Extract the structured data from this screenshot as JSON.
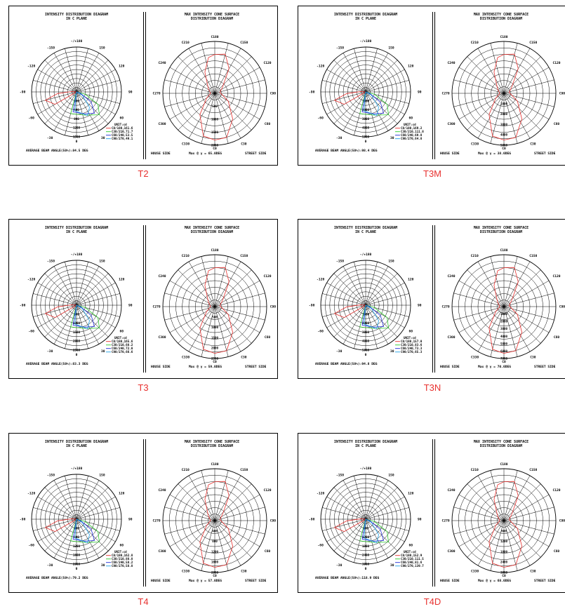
{
  "colors": {
    "red": "#e8312f",
    "green": "#2ecc2e",
    "blue": "#1f2ad6",
    "cyan": "#1fa0e6",
    "black": "#000000"
  },
  "panels": [
    {
      "caption": "T2",
      "left": {
        "title": "INTENSITY DISTRIBUTION DIAGRAM\nIN C PLANE",
        "angles": [
          "-/+180",
          "-150",
          "150",
          "-120",
          "120",
          "-90",
          "90",
          "-60",
          "60",
          "-30",
          "30",
          "0"
        ],
        "rings": [
          "300",
          "600",
          "900",
          "1200",
          "1500"
        ],
        "legend_title": "UNIT:cd",
        "legend": [
          "C0/180,161.6",
          "C30/210,71.7",
          "C60/240,53.5",
          "C90/270,49.1"
        ],
        "footer": "AVERAGE BEAM ANGLE(50%):84.5 DEG"
      },
      "right": {
        "title": "MAX INTENSITY CONE SURFACE\nDISTRIBUTION DIAGRAM",
        "angles": [
          "C180",
          "C210",
          "C150",
          "C240",
          "C120",
          "C270",
          "C90",
          "C300",
          "C60",
          "C330",
          "C30",
          "C0"
        ],
        "rings": [
          "500",
          "1000",
          "1500",
          "2000"
        ],
        "footer_left": "HOUSE SIDE",
        "footer_mid": "Max @ γ = 65.0DEG",
        "footer_right": "STREET SIDE"
      }
    },
    {
      "caption": "T3M",
      "left": {
        "title": "INTENSITY DISTRIBUTION DIAGRAM\nIN C PLANE",
        "angles": [
          "-/+180",
          "-150",
          "150",
          "-120",
          "120",
          "-90",
          "90",
          "-60",
          "60",
          "-30",
          "30",
          "0"
        ],
        "rings": [
          "1000",
          "2000",
          "3000",
          "4000",
          "5000"
        ],
        "legend_title": "UNIT:cd",
        "legend": [
          "C0/180,169.2",
          "C30/210,111.8",
          "C60/240,69.8",
          "C90/270,64.8"
        ],
        "footer": "AVERAGE BEAM ANGLE(50%):98.4 DEG"
      },
      "right": {
        "title": "MAX INTENSITY CONE SURFACE\nDISTRIBUTION DIAGRAM",
        "angles": [
          "C180",
          "C210",
          "C150",
          "C240",
          "C120",
          "C270",
          "C90",
          "C300",
          "C60",
          "C330",
          "C30",
          "C0"
        ],
        "rings": [
          "1000",
          "2000",
          "3000",
          "4000",
          "5000"
        ],
        "footer_left": "HOUSE SIDE",
        "footer_mid": "Max @ γ = 38.0DEG",
        "footer_right": "STREET SIDE"
      }
    },
    {
      "caption": "T3",
      "left": {
        "title": "INTENSITY DISTRIBUTION DIAGRAM\nIN C PLANE",
        "angles": [
          "-/+180",
          "-150",
          "150",
          "-120",
          "120",
          "-90",
          "90",
          "-60",
          "60",
          "-30",
          "30",
          "0"
        ],
        "rings": [
          "500",
          "1000",
          "1500",
          "2000",
          "2500"
        ],
        "legend_title": "UNIT:cd",
        "legend": [
          "C0/180,165.6",
          "C30/210,68.2",
          "C60/240,72.0",
          "C90/270,66.6"
        ],
        "footer": "AVERAGE BEAM ANGLE(50%):83.3 DEG"
      },
      "right": {
        "title": "MAX INTENSITY CONE SURFACE\nDISTRIBUTION DIAGRAM",
        "angles": [
          "C180",
          "C210",
          "C150",
          "C240",
          "C120",
          "C270",
          "C90",
          "C300",
          "C60",
          "C330",
          "C30",
          "C0"
        ],
        "rings": [
          "500",
          "1000",
          "1500",
          "2000",
          "2500"
        ],
        "footer_left": "HOUSE SIDE",
        "footer_mid": "Max @ γ = 59.0DEG",
        "footer_right": "STREET SIDE"
      }
    },
    {
      "caption": "T3N",
      "left": {
        "title": "INTENSITY DISTRIBUTION DIAGRAM\nIN C PLANE",
        "angles": [
          "-/+180",
          "-150",
          "150",
          "-120",
          "120",
          "-90",
          "90",
          "-60",
          "60",
          "-30",
          "30",
          "0"
        ],
        "rings": [
          "1000",
          "2000",
          "3000",
          "4000",
          "5000"
        ],
        "legend_title": "UNIT:cd",
        "legend": [
          "C0/180,157.0",
          "C30/210,83.6",
          "C60/240,73.3",
          "C90/270,65.3"
        ],
        "footer": "AVERAGE BEAM ANGLE(50%):94.8 DEG"
      },
      "right": {
        "title": "MAX INTENSITY CONE SURFACE\nDISTRIBUTION DIAGRAM",
        "angles": [
          "C180",
          "C210",
          "C150",
          "C240",
          "C120",
          "C270",
          "C90",
          "C300",
          "C60",
          "C330",
          "C30",
          "C0"
        ],
        "rings": [
          "1000",
          "2000",
          "3000",
          "4000",
          "5000",
          "6000",
          "7000"
        ],
        "footer_left": "HOUSE SIDE",
        "footer_mid": "Max @ γ = 70.0DEG",
        "footer_right": "STREET SIDE"
      }
    },
    {
      "caption": "T4",
      "left": {
        "title": "INTENSITY DISTRIBUTION DIAGRAM\nIN C PLANE",
        "angles": [
          "-/+180",
          "-150",
          "150",
          "-120",
          "120",
          "-90",
          "90",
          "-60",
          "60",
          "-30",
          "30",
          "0"
        ],
        "rings": [
          "400",
          "800",
          "1200",
          "1600",
          "2000"
        ],
        "legend_title": "UNIT:cd",
        "legend": [
          "C0/180,162.8",
          "C30/210,88.8",
          "C60/240,58.2",
          "C90/270,58.8"
        ],
        "footer": "AVERAGE BEAM ANGLE(50%):79.2 DEG"
      },
      "right": {
        "title": "MAX INTENSITY CONE SURFACE\nDISTRIBUTION DIAGRAM",
        "angles": [
          "C180",
          "C210",
          "C150",
          "C240",
          "C120",
          "C270",
          "C90",
          "C300",
          "C60",
          "C330",
          "C30",
          "C0"
        ],
        "rings": [
          "400",
          "800",
          "1200",
          "1600",
          "2000"
        ],
        "footer_left": "HOUSE SIDE",
        "footer_mid": "Max @ γ = 57.0DEG",
        "footer_right": "STREET SIDE"
      }
    },
    {
      "caption": "T4D",
      "left": {
        "title": "INTENSITY DISTRIBUTION DIAGRAM\nIN C PLANE",
        "angles": [
          "-/+180",
          "-150",
          "150",
          "-120",
          "120",
          "-90",
          "90",
          "-60",
          "60",
          "-30",
          "30",
          "0"
        ],
        "rings": [
          "600",
          "1200",
          "1800",
          "2400",
          "3000"
        ],
        "legend_title": "UNIT:cd",
        "legend": [
          "C0/180,152.9",
          "C30/210,111.5",
          "C60/240,81.6",
          "C90/270,139.7"
        ],
        "footer": "AVERAGE BEAM ANGLE(50%):118.9 DEG"
      },
      "right": {
        "title": "MAX INTENSITY CONE SURFACE\nDISTRIBUTION DIAGRAM",
        "angles": [
          "C180",
          "C210",
          "C150",
          "C240",
          "C120",
          "C270",
          "C90",
          "C300",
          "C60",
          "C330",
          "C30",
          "C0"
        ],
        "rings": [
          "600",
          "1200",
          "1800",
          "2400",
          "3000"
        ],
        "footer_left": "HOUSE SIDE",
        "footer_mid": "Max @ γ = 68.0DEG",
        "footer_right": "STREET SIDE"
      }
    }
  ]
}
